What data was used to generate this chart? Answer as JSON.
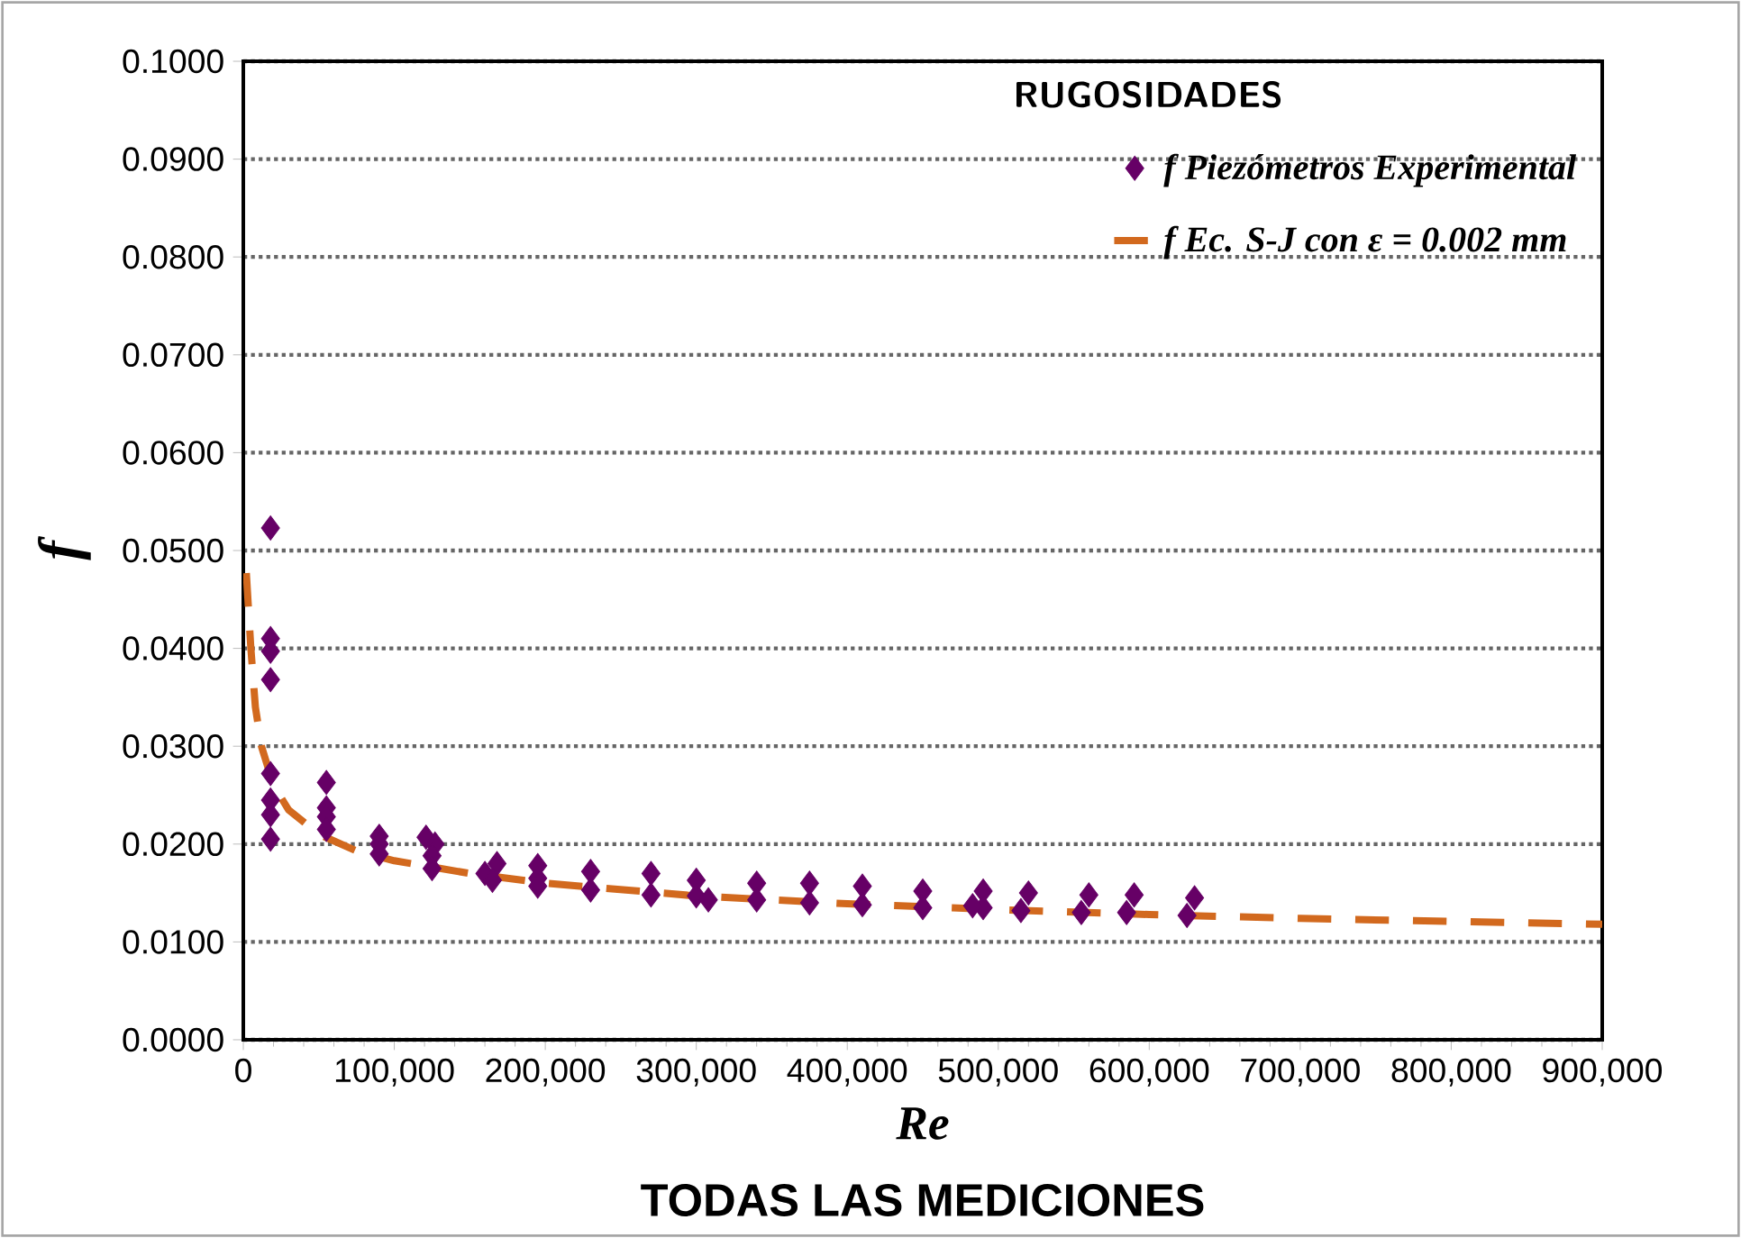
{
  "chart_data": {
    "type": "scatter",
    "title": "TODAS LAS MEDICIONES",
    "xlabel": "Re",
    "ylabel": "f",
    "legend_title": "RUGOSIDADES",
    "legend": "top right",
    "grid": "y",
    "xlim": [
      0,
      900000
    ],
    "ylim": [
      0,
      0.1
    ],
    "xticks": [
      0,
      {
        "value": 100000,
        "label": "100,000"
      },
      {
        "value": 200000,
        "label": "200,000"
      },
      {
        "value": 300000,
        "label": "300,000"
      },
      {
        "value": 400000,
        "label": "400,000"
      },
      {
        "value": 500000,
        "label": "500,000"
      },
      {
        "value": 600000,
        "label": "600,000"
      },
      {
        "value": 700000,
        "label": "700,000"
      },
      {
        "value": 800000,
        "label": "800,000"
      },
      {
        "value": 900000,
        "label": "900,000"
      }
    ],
    "yticks": [
      {
        "value": 0,
        "label": "0.0000"
      },
      {
        "value": 0.01,
        "label": "0.0100"
      },
      {
        "value": 0.02,
        "label": "0.0200"
      },
      {
        "value": 0.03,
        "label": "0.0300"
      },
      {
        "value": 0.04,
        "label": "0.0400"
      },
      {
        "value": 0.05,
        "label": "0.0500"
      },
      {
        "value": 0.06,
        "label": "0.0600"
      },
      {
        "value": 0.07,
        "label": "0.0700"
      },
      {
        "value": 0.08,
        "label": "0.0800"
      },
      {
        "value": 0.09,
        "label": "0.0900"
      },
      {
        "value": 0.1,
        "label": "0.1000"
      }
    ],
    "series": [
      {
        "name": "*f Piezómetros Experimental*",
        "marker": "diamond",
        "color": "#660066",
        "x": [
          18000,
          18000,
          18000,
          18000,
          18000,
          18000,
          18000,
          18000,
          55000,
          55000,
          55000,
          55000,
          90000,
          90000,
          90000,
          121000,
          127000,
          125000,
          125000,
          168000,
          160000,
          165000,
          195000,
          195000,
          195000,
          230000,
          230000,
          270000,
          270000,
          300000,
          300000,
          308000,
          340000,
          340000,
          375000,
          375000,
          410000,
          410000,
          450000,
          450000,
          490000,
          490000,
          483000,
          520000,
          515000,
          560000,
          555000,
          590000,
          585000,
          630000,
          625000
        ],
        "values": [
          0.0523,
          0.041,
          0.0397,
          0.0368,
          0.0272,
          0.0245,
          0.023,
          0.0205,
          0.0263,
          0.0237,
          0.0228,
          0.0215,
          0.0208,
          0.02,
          0.019,
          0.0207,
          0.02,
          0.0188,
          0.0175,
          0.018,
          0.017,
          0.0163,
          0.0178,
          0.0165,
          0.0157,
          0.0172,
          0.0153,
          0.017,
          0.0148,
          0.0163,
          0.0147,
          0.0143,
          0.016,
          0.0143,
          0.016,
          0.014,
          0.0157,
          0.0138,
          0.0152,
          0.0135,
          0.0152,
          0.0135,
          0.0137,
          0.015,
          0.0132,
          0.0148,
          0.013,
          0.0148,
          0.013,
          0.0145,
          0.0127
        ]
      },
      {
        "name": "*f Ec. S-J con ε = 0.002 mm*",
        "type": "line",
        "line_style": "dashed",
        "marker": "none",
        "color": "#d2691e",
        "x": [
          2000,
          5000,
          8000,
          12000,
          20000,
          30000,
          50000,
          75000,
          100000,
          150000,
          200000,
          300000,
          400000,
          500000,
          600000,
          700000,
          800000,
          900000
        ],
        "values": [
          0.0477,
          0.04,
          0.034,
          0.03,
          0.026,
          0.0235,
          0.021,
          0.0193,
          0.0183,
          0.017,
          0.016,
          0.0147,
          0.0139,
          0.0133,
          0.0128,
          0.0124,
          0.0121,
          0.0118
        ]
      }
    ]
  }
}
